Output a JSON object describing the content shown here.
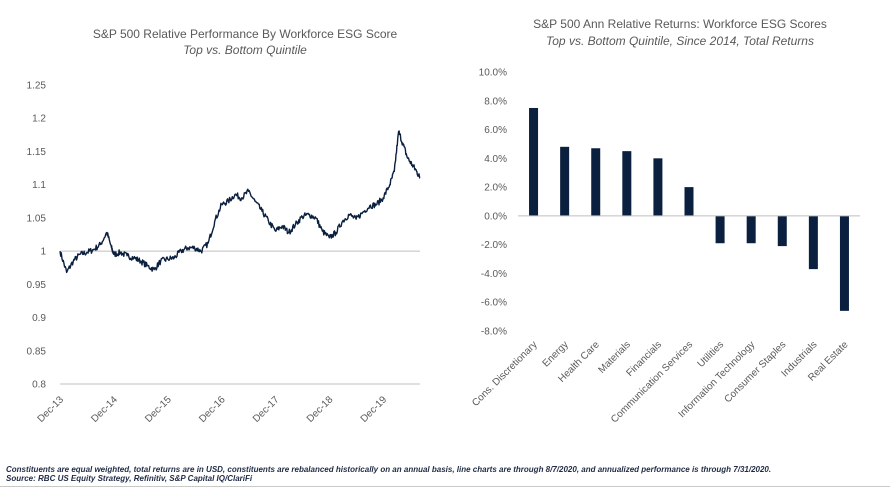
{
  "colors": {
    "line": "#0b1f3f",
    "bar": "#0b1f3f",
    "axis": "#bfbfbf",
    "text": "#595959"
  },
  "chart_data": [
    {
      "type": "line",
      "title": "S&P 500 Relative Performance  By Workforce  ESG Score",
      "subtitle": "Top vs. Bottom Quintile",
      "xlabel": "",
      "ylabel": "",
      "ylim": [
        0.8,
        1.25
      ],
      "yticks": [
        0.8,
        0.85,
        0.9,
        0.95,
        1,
        1.05,
        1.1,
        1.15,
        1.2,
        1.25
      ],
      "ytick_labels": [
        "0.8",
        "0.85",
        "0.9",
        "0.95",
        "1",
        "1.05",
        "1.1",
        "1.15",
        "1.2",
        "1.25"
      ],
      "xlim": [
        "2013-12-01",
        "2020-08-07"
      ],
      "xtick_labels": [
        "Dec-13",
        "Dec-14",
        "Dec-15",
        "Dec-16",
        "Dec-17",
        "Dec-18",
        "Dec-19"
      ],
      "xticks": [
        "2013-12-01",
        "2014-12-01",
        "2015-12-01",
        "2016-12-01",
        "2017-12-01",
        "2018-12-01",
        "2019-12-01"
      ],
      "reference_line": 1,
      "grid": false,
      "series": [
        {
          "x": [
            "2013-12-01",
            "2014-01-15",
            "2014-03-01",
            "2014-04-15",
            "2014-06-01",
            "2014-07-15",
            "2014-09-01",
            "2014-10-15",
            "2014-11-15",
            "2014-12-01",
            "2015-01-15",
            "2015-03-01",
            "2015-04-15",
            "2015-06-01",
            "2015-07-15",
            "2015-09-01",
            "2015-10-15",
            "2015-12-01",
            "2016-01-15",
            "2016-03-01",
            "2016-04-15",
            "2016-06-01",
            "2016-07-15",
            "2016-09-01",
            "2016-10-15",
            "2016-12-01",
            "2017-01-15",
            "2017-03-01",
            "2017-04-15",
            "2017-06-01",
            "2017-07-15",
            "2017-09-01",
            "2017-10-15",
            "2017-12-01",
            "2018-01-15",
            "2018-03-01",
            "2018-04-15",
            "2018-06-01",
            "2018-07-15",
            "2018-09-01",
            "2018-10-15",
            "2018-12-01",
            "2019-01-15",
            "2019-03-01",
            "2019-04-15",
            "2019-06-01",
            "2019-07-15",
            "2019-09-01",
            "2019-10-15",
            "2019-12-01",
            "2020-01-15",
            "2020-02-15",
            "2020-03-15",
            "2020-04-15",
            "2020-05-15",
            "2020-06-15",
            "2020-07-15",
            "2020-08-07"
          ],
          "values": [
            1.0,
            0.968,
            0.985,
            0.995,
            0.998,
            1.002,
            1.01,
            1.028,
            1.005,
            0.995,
            0.998,
            0.993,
            0.99,
            0.985,
            0.978,
            0.972,
            0.985,
            0.988,
            0.99,
            1.0,
            1.005,
            1.005,
            1.0,
            1.012,
            1.045,
            1.07,
            1.075,
            1.085,
            1.08,
            1.09,
            1.075,
            1.06,
            1.045,
            1.03,
            1.038,
            1.028,
            1.04,
            1.052,
            1.055,
            1.05,
            1.03,
            1.02,
            1.028,
            1.045,
            1.055,
            1.048,
            1.058,
            1.068,
            1.07,
            1.08,
            1.1,
            1.12,
            1.18,
            1.16,
            1.14,
            1.13,
            1.12,
            1.11
          ]
        }
      ]
    },
    {
      "type": "bar",
      "title": "S&P 500 Ann Relative Returns: Workforce  ESG Scores",
      "subtitle": "Top vs. Bottom Quintile, Since 2014, Total Returns",
      "xlabel": "",
      "ylabel": "",
      "ylim": [
        -8,
        10
      ],
      "yticks": [
        -8,
        -6,
        -4,
        -2,
        0,
        2,
        4,
        6,
        8,
        10
      ],
      "ytick_labels": [
        "-8.0%",
        "-6.0%",
        "-4.0%",
        "-2.0%",
        "0.0%",
        "2.0%",
        "4.0%",
        "6.0%",
        "8.0%",
        "10.0%"
      ],
      "grid": false,
      "categories": [
        "Cons. Discretionary",
        "Energy",
        "Health Care",
        "Materials",
        "Financials",
        "Communication Services",
        "Utilities",
        "Information Technology",
        "Consumer Staples",
        "Industrials",
        "Real Estate"
      ],
      "values": [
        7.5,
        4.8,
        4.7,
        4.5,
        4.0,
        2.0,
        -1.9,
        -1.9,
        -2.1,
        -3.7,
        -6.6
      ]
    }
  ],
  "footnotes": {
    "line1": "Constituents are equal weighted, total returns are in USD, constituents are rebalanced historically on an annual basis, line charts are through 8/7/2020, and annualized performance is through 7/31/2020.",
    "line2": "Source: RBC US Equity Strategy, Refinitiv, S&P Capital IQ/ClariFi"
  }
}
